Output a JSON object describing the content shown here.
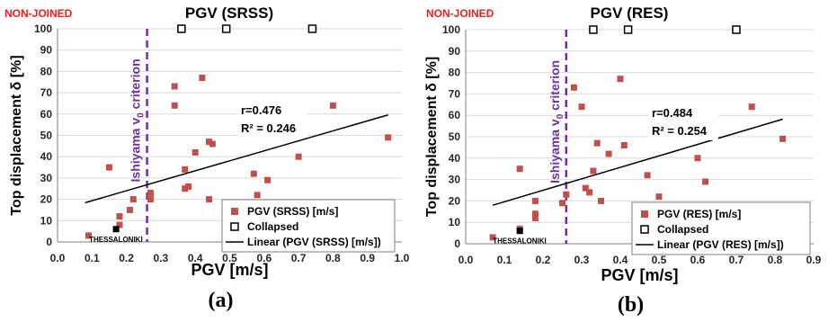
{
  "chart_data": [
    {
      "type": "scatter",
      "tag": "NON-JOINED",
      "title": "PGV (SRSS)",
      "xlabel": "PGV [m/s]",
      "ylabel": "Top displacement δ [%]",
      "panel_label": "(a)",
      "xlim": [
        0.0,
        1.0
      ],
      "ylim": [
        0,
        100
      ],
      "x_ticks": [
        "0.0",
        "0.1",
        "0.2",
        "0.3",
        "0.4",
        "0.5",
        "0.6",
        "0.7",
        "0.8",
        "0.9",
        "1.0"
      ],
      "y_ticks": [
        "0",
        "10",
        "20",
        "30",
        "40",
        "50",
        "60",
        "70",
        "80",
        "90",
        "100"
      ],
      "grid": "horizontal",
      "legend_position": "bottom-right",
      "criterion": {
        "x": 0.26,
        "label_prefix": "Ishiyama v",
        "label_sub": "0",
        "label_suffix": " criterion",
        "color": "#7030a0"
      },
      "stats": {
        "r": "r=0.476",
        "r2": "R² = 0.246"
      },
      "city_label": "THESSALONIKI",
      "city_point": {
        "x": 0.17,
        "y": 6
      },
      "series": [
        {
          "name": "PGV (SRSS) [m/s]",
          "marker": "filled-square",
          "color": "#c0504d",
          "points": [
            [
              0.09,
              3
            ],
            [
              0.15,
              35
            ],
            [
              0.18,
              12
            ],
            [
              0.18,
              8
            ],
            [
              0.21,
              15
            ],
            [
              0.22,
              20
            ],
            [
              0.27,
              23
            ],
            [
              0.27,
              20
            ],
            [
              0.34,
              73
            ],
            [
              0.34,
              64
            ],
            [
              0.37,
              34
            ],
            [
              0.37,
              25
            ],
            [
              0.38,
              26
            ],
            [
              0.4,
              42
            ],
            [
              0.42,
              77
            ],
            [
              0.44,
              47
            ],
            [
              0.45,
              46
            ],
            [
              0.44,
              20
            ],
            [
              0.57,
              32
            ],
            [
              0.58,
              22
            ],
            [
              0.61,
              29
            ],
            [
              0.7,
              40
            ],
            [
              0.8,
              64
            ],
            [
              0.96,
              49
            ]
          ]
        },
        {
          "name": "Collapsed",
          "marker": "open-square",
          "color": "#000000",
          "points": [
            [
              0.36,
              100
            ],
            [
              0.49,
              100
            ],
            [
              0.74,
              100
            ]
          ]
        },
        {
          "name": "Linear (PGV (SRSS) [m/s])",
          "marker": "line",
          "color": "#000000",
          "points": [
            [
              0.08,
              18.4
            ],
            [
              0.96,
              59.6
            ]
          ]
        }
      ]
    },
    {
      "type": "scatter",
      "tag": "NON-JOINED",
      "title": "PGV (RES)",
      "xlabel": "PGV  [m/s]",
      "ylabel": "Top displacement δ [%]",
      "panel_label": "(b)",
      "xlim": [
        0.0,
        0.9
      ],
      "ylim": [
        0,
        100
      ],
      "x_ticks": [
        "0.0",
        "0.1",
        "0.2",
        "0.3",
        "0.4",
        "0.5",
        "0.6",
        "0.7",
        "0.8",
        "0.9"
      ],
      "y_ticks": [
        "0",
        "10",
        "20",
        "30",
        "40",
        "50",
        "60",
        "70",
        "80",
        "90",
        "100"
      ],
      "grid": "horizontal",
      "legend_position": "bottom-right",
      "criterion": {
        "x": 0.26,
        "label_prefix": "Ishiyama v",
        "label_sub": "0",
        "label_suffix": " criterion",
        "color": "#7030a0"
      },
      "stats": {
        "r": "r=0.484",
        "r2": "R² = 0.254"
      },
      "city_label": "THESSALONIKI",
      "city_point": {
        "x": 0.14,
        "y": 6
      },
      "series": [
        {
          "name": "PGV (RES) [m/s]",
          "marker": "filled-square",
          "color": "#c0504d",
          "points": [
            [
              0.07,
              3
            ],
            [
              0.14,
              35
            ],
            [
              0.14,
              7
            ],
            [
              0.18,
              20
            ],
            [
              0.18,
              14
            ],
            [
              0.18,
              12
            ],
            [
              0.25,
              19
            ],
            [
              0.26,
              23
            ],
            [
              0.28,
              73
            ],
            [
              0.3,
              64
            ],
            [
              0.31,
              26
            ],
            [
              0.32,
              24
            ],
            [
              0.33,
              34
            ],
            [
              0.34,
              47
            ],
            [
              0.35,
              20
            ],
            [
              0.37,
              42
            ],
            [
              0.4,
              77
            ],
            [
              0.41,
              46
            ],
            [
              0.47,
              32
            ],
            [
              0.5,
              22
            ],
            [
              0.6,
              40
            ],
            [
              0.62,
              29
            ],
            [
              0.74,
              64
            ],
            [
              0.82,
              49
            ]
          ]
        },
        {
          "name": "Collapsed",
          "marker": "open-square",
          "color": "#000000",
          "points": [
            [
              0.33,
              100
            ],
            [
              0.42,
              100
            ],
            [
              0.7,
              100
            ]
          ]
        },
        {
          "name": "Linear (PGV (RES) [m/s])",
          "marker": "line",
          "color": "#000000",
          "points": [
            [
              0.07,
              18.0
            ],
            [
              0.82,
              58.2
            ]
          ]
        }
      ]
    }
  ]
}
